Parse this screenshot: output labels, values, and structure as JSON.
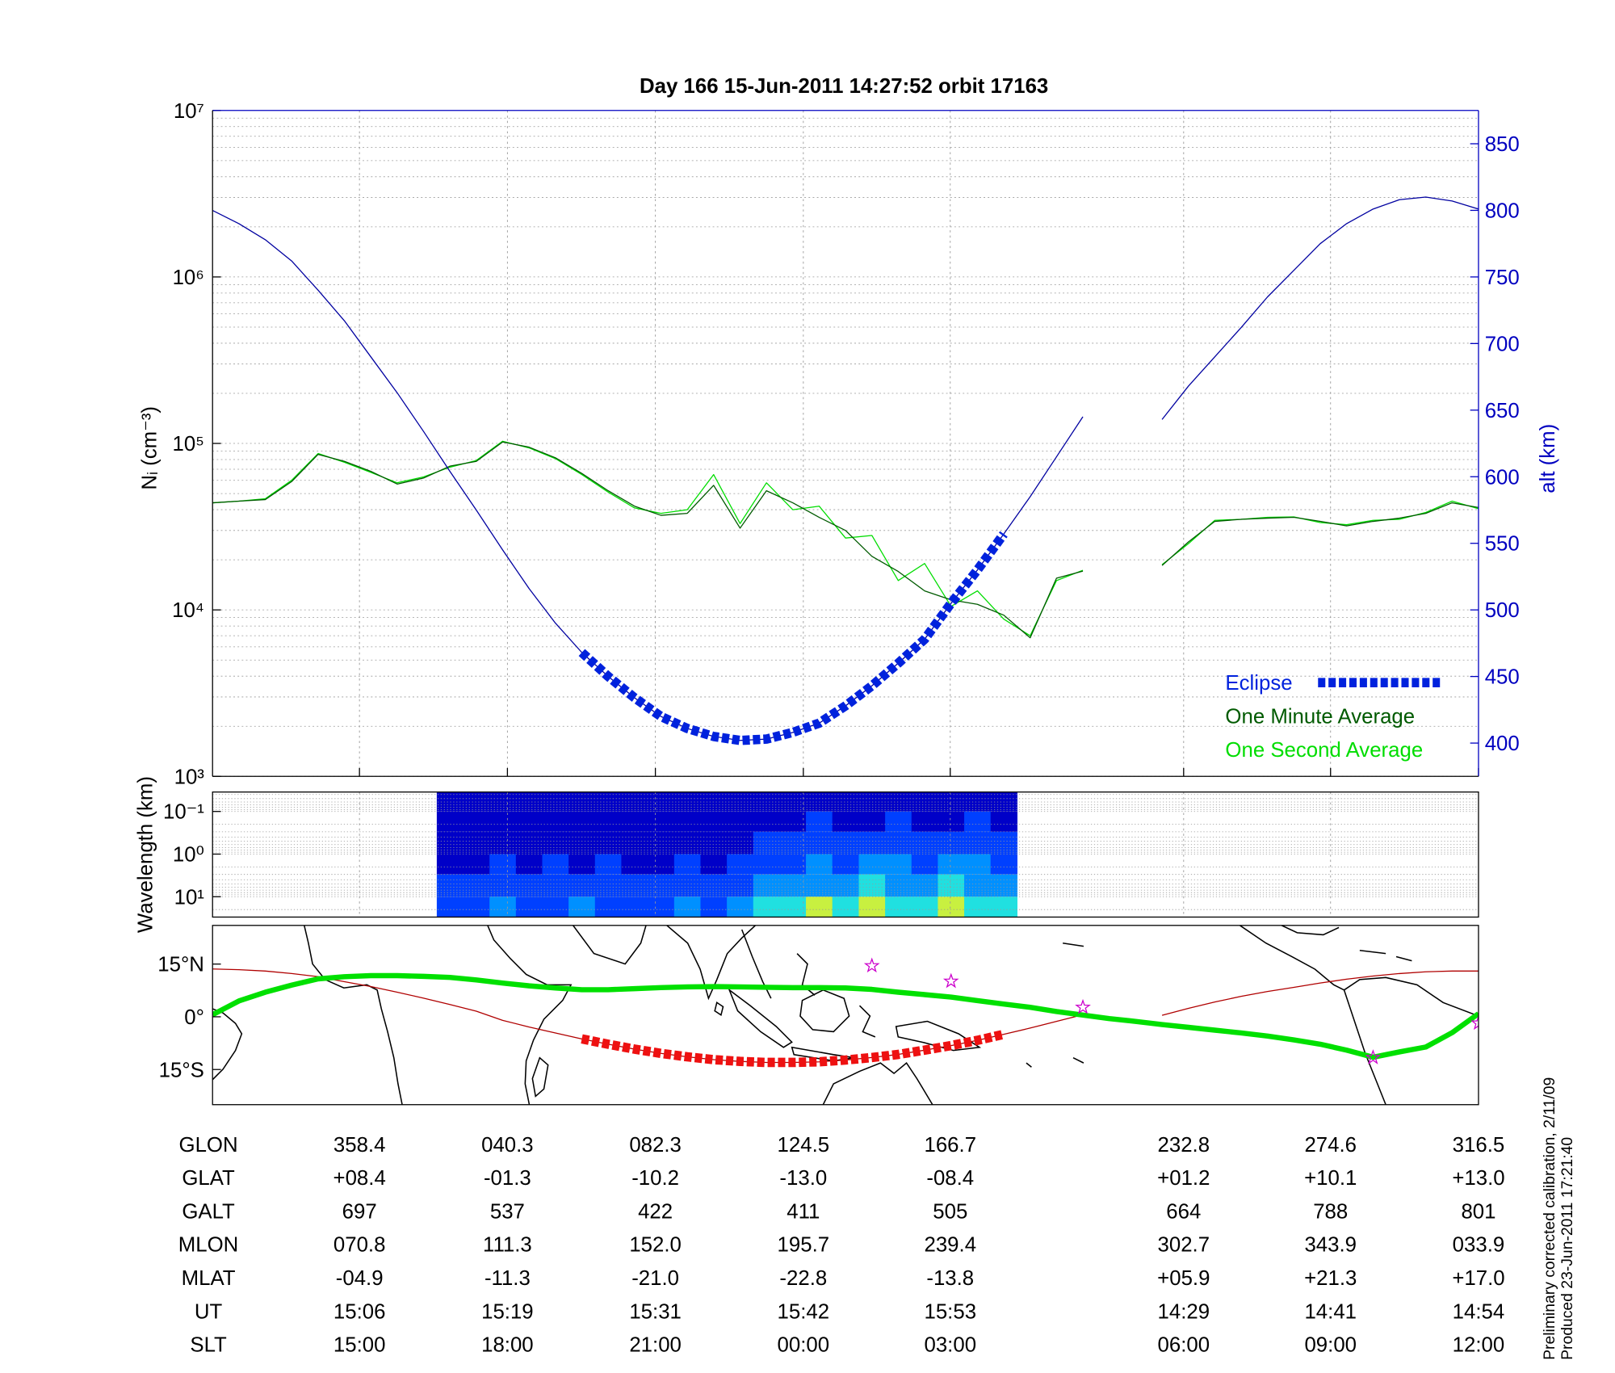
{
  "title": "Day 166  15-Jun-2011 14:27:52   orbit 17163",
  "chart_data": [
    {
      "type": "line",
      "ylabel": "Nᵢ (cm⁻³)",
      "y2label": "alt (km)",
      "yscale": "log",
      "ylim": [
        1000,
        10000000
      ],
      "yticks": [
        {
          "value": 1000,
          "label": "10³"
        },
        {
          "value": 10000,
          "label": "10⁴"
        },
        {
          "value": 100000,
          "label": "10⁵"
        },
        {
          "value": 1000000,
          "label": "10⁶"
        },
        {
          "value": 10000000,
          "label": "10⁷"
        }
      ],
      "y2lim": [
        375,
        875
      ],
      "y2ticks": [
        400,
        450,
        500,
        550,
        600,
        650,
        700,
        750,
        800,
        850
      ],
      "grid": true,
      "legend": "lower right",
      "series": [
        {
          "name": "One Second Average",
          "color": "#00dd00",
          "style": "line",
          "values": [
            44000,
            45000,
            46500,
            60000,
            87000,
            77000,
            67000,
            58000,
            63000,
            72000,
            79000,
            103000,
            94000,
            81000,
            65000,
            51000,
            41000,
            38000,
            40000,
            65000,
            33000,
            58000,
            40000,
            42000,
            27000,
            28000,
            15000,
            19000,
            10500,
            13000,
            8800,
            7000,
            15000,
            17300,
            null,
            null,
            18700,
            25000,
            34500,
            35000,
            36000,
            36200,
            33500,
            32500,
            34500,
            35000,
            38500,
            45000,
            40500
          ]
        },
        {
          "name": "One Minute Average",
          "color": "#005a00",
          "style": "line",
          "values": [
            44000,
            45000,
            46000,
            59000,
            86000,
            78000,
            68000,
            57000,
            62000,
            73000,
            78000,
            102000,
            95000,
            82000,
            66000,
            52000,
            42000,
            37000,
            38000,
            56000,
            31000,
            52000,
            44000,
            36000,
            30000,
            21000,
            17000,
            13000,
            11500,
            10800,
            9300,
            6800,
            15500,
            17100,
            null,
            null,
            18500,
            25600,
            34000,
            35000,
            35600,
            36000,
            34000,
            32000,
            34000,
            35600,
            38000,
            44000,
            41200
          ]
        },
        {
          "color": "#0000a0",
          "axis": "y2",
          "style": "line",
          "values": [
            800,
            790,
            778,
            762,
            740,
            717,
            690,
            663,
            634,
            604,
            575,
            545,
            516,
            490,
            468,
            450,
            434,
            420,
            411,
            405,
            402,
            403,
            408,
            415,
            428,
            443,
            460,
            478,
            505,
            530,
            557,
            585,
            615,
            645,
            null,
            null,
            643,
            668,
            690,
            712,
            735,
            755,
            775,
            790,
            801,
            808,
            810,
            807,
            801
          ]
        },
        {
          "name": "Eclipse",
          "color": "#0022dd",
          "axis": "y2",
          "style": "dashes",
          "values": [
            null,
            null,
            null,
            null,
            null,
            null,
            null,
            null,
            null,
            null,
            null,
            null,
            null,
            null,
            468,
            450,
            434,
            420,
            411,
            405,
            402,
            403,
            408,
            415,
            428,
            443,
            460,
            478,
            505,
            530,
            557,
            null,
            null,
            null,
            null,
            null,
            null,
            null,
            null,
            null,
            null,
            null,
            null,
            null,
            null,
            null,
            null,
            null,
            null
          ]
        }
      ]
    },
    {
      "type": "heatmap",
      "ylabel": "Wavelength (km)",
      "yscale": "log",
      "inverted": true,
      "ylim": [
        0.035,
        30
      ],
      "yticks": [
        {
          "value": 0.1,
          "label": "10⁻¹"
        },
        {
          "value": 1,
          "label": "10⁰"
        },
        {
          "value": 10,
          "label": "10¹"
        }
      ],
      "ybins": [
        0.035,
        0.1,
        0.3,
        1,
        3,
        10,
        30
      ],
      "zlim": [
        0,
        10
      ],
      "colorscale": [
        "#00007a",
        "#0000c8",
        "#0040ff",
        "#0090ff",
        "#20e0e0",
        "#c8f040"
      ],
      "z": [
        [
          null,
          null,
          null,
          null,
          null,
          null,
          null,
          null,
          null,
          1,
          1,
          1,
          1,
          1,
          1,
          1,
          1,
          1,
          1,
          1,
          1,
          1,
          2,
          2,
          1,
          2,
          2,
          1,
          2,
          2,
          1,
          null,
          null,
          null,
          null,
          null,
          null,
          null,
          null,
          null,
          null,
          null,
          null,
          null,
          null,
          null,
          null,
          null,
          null
        ],
        [
          null,
          null,
          null,
          null,
          null,
          null,
          null,
          null,
          null,
          1,
          1,
          2,
          1,
          1,
          1,
          2,
          1,
          1,
          2,
          1,
          1,
          2,
          2,
          3,
          2,
          2,
          3,
          2,
          2,
          3,
          2,
          null,
          null,
          null,
          null,
          null,
          null,
          null,
          null,
          null,
          null,
          null,
          null,
          null,
          null,
          null,
          null,
          null,
          null
        ],
        [
          null,
          null,
          null,
          null,
          null,
          null,
          null,
          null,
          null,
          2,
          2,
          2,
          2,
          2,
          2,
          2,
          2,
          2,
          2,
          2,
          2,
          3,
          3,
          4,
          3,
          3,
          4,
          3,
          3,
          4,
          3,
          null,
          null,
          null,
          null,
          null,
          null,
          null,
          null,
          null,
          null,
          null,
          null,
          null,
          null,
          null,
          null,
          null,
          null
        ],
        [
          null,
          null,
          null,
          null,
          null,
          null,
          null,
          null,
          null,
          2,
          2,
          3,
          2,
          3,
          2,
          3,
          2,
          2,
          3,
          2,
          3,
          4,
          4,
          5,
          4,
          5,
          5,
          4,
          5,
          5,
          4,
          null,
          null,
          null,
          null,
          null,
          null,
          null,
          null,
          null,
          null,
          null,
          null,
          null,
          null,
          null,
          null,
          null,
          null
        ],
        [
          null,
          null,
          null,
          null,
          null,
          null,
          null,
          null,
          null,
          3,
          3,
          3,
          3,
          3,
          3,
          3,
          3,
          3,
          3,
          3,
          3,
          5,
          6,
          6,
          6,
          7,
          6,
          6,
          7,
          6,
          5,
          null,
          null,
          null,
          null,
          null,
          null,
          null,
          null,
          null,
          null,
          null,
          null,
          null,
          null,
          null,
          null,
          null,
          null
        ],
        [
          null,
          null,
          null,
          null,
          null,
          null,
          null,
          null,
          null,
          4,
          4,
          5,
          4,
          4,
          5,
          4,
          4,
          4,
          5,
          4,
          5,
          7,
          8,
          9,
          8,
          9,
          8,
          8,
          9,
          8,
          7,
          null,
          null,
          null,
          null,
          null,
          null,
          null,
          null,
          null,
          null,
          null,
          null,
          null,
          null,
          null,
          null,
          null,
          null
        ]
      ]
    },
    {
      "type": "map",
      "ylim": [
        -25,
        26
      ],
      "yticks": [
        {
          "value": 15,
          "label": "15°N"
        },
        {
          "value": 0,
          "label": "0°"
        },
        {
          "value": -15,
          "label": "15°S"
        }
      ],
      "series": [
        {
          "color": "#b00000",
          "style": "line",
          "values": [
            13.6,
            13.4,
            13.0,
            12.3,
            11.4,
            10.0,
            8.6,
            7.0,
            5.3,
            3.5,
            1.6,
            -1.0,
            -2.9,
            -4.6,
            -6.3,
            -7.8,
            -9.2,
            -10.4,
            -11.4,
            -12.2,
            -12.7,
            -13.0,
            -13.0,
            -12.8,
            -12.3,
            -11.6,
            -10.7,
            -9.5,
            -8.2,
            -6.7,
            -5.0,
            -3.2,
            -1.3,
            0.6,
            null,
            null,
            0.4,
            2.4,
            4.2,
            5.8,
            7.2,
            8.4,
            9.6,
            10.7,
            11.6,
            12.3,
            12.8,
            13.0,
            13.0
          ]
        },
        {
          "color": "#00e000",
          "style": "thick",
          "values": [
            0.6,
            4.5,
            7.0,
            9.0,
            10.8,
            11.4,
            11.7,
            11.7,
            11.5,
            11.2,
            10.5,
            9.6,
            8.8,
            8.2,
            7.7,
            7.7,
            8.0,
            8.3,
            8.5,
            8.6,
            8.5,
            8.4,
            8.3,
            8.3,
            8.2,
            7.8,
            7.0,
            6.3,
            5.6,
            4.6,
            3.6,
            2.7,
            1.5,
            0.5,
            -0.5,
            -1.3,
            -2.2,
            -3.0,
            -3.8,
            -4.6,
            -5.5,
            -6.6,
            -7.8,
            -9.5,
            -11.5,
            -10.0,
            -8.6,
            -4.5,
            0.9
          ]
        },
        {
          "color": "#ee1111",
          "style": "dashes",
          "values": [
            null,
            null,
            null,
            null,
            null,
            null,
            null,
            null,
            null,
            null,
            null,
            null,
            null,
            null,
            -6.3,
            -7.8,
            -9.2,
            -10.4,
            -11.4,
            -12.2,
            -12.7,
            -13.0,
            -13.0,
            -12.8,
            -12.3,
            -11.6,
            -10.7,
            -9.5,
            -8.2,
            -6.7,
            -5.0,
            null,
            null,
            null,
            null,
            null,
            null,
            null,
            null,
            null,
            null,
            null,
            null,
            null,
            null,
            null,
            null,
            null,
            null
          ]
        },
        {
          "color": "#cc00cc",
          "style": "star",
          "values": [
            null,
            null,
            null,
            null,
            null,
            null,
            null,
            null,
            null,
            null,
            null,
            null,
            null,
            null,
            null,
            null,
            null,
            null,
            null,
            null,
            null,
            null,
            null,
            null,
            null,
            14.5,
            null,
            null,
            10.1,
            null,
            null,
            null,
            null,
            2.7,
            null,
            null,
            null,
            null,
            null,
            null,
            null,
            null,
            null,
            null,
            -11.6,
            null,
            null,
            null,
            -1.8
          ]
        }
      ]
    }
  ],
  "table": {
    "rows": [
      {
        "label": "GLON",
        "cells": [
          "358.4",
          "040.3",
          "082.3",
          "124.5",
          "166.7",
          "232.8",
          "274.6",
          "316.5"
        ]
      },
      {
        "label": "GLAT",
        "cells": [
          "+08.4",
          "-01.3",
          "-10.2",
          "-13.0",
          "-08.4",
          "+01.2",
          "+10.1",
          "+13.0"
        ]
      },
      {
        "label": "GALT",
        "cells": [
          "697",
          "537",
          "422",
          "411",
          "505",
          "664",
          "788",
          "801"
        ]
      },
      {
        "label": "MLON",
        "cells": [
          "070.8",
          "111.3",
          "152.0",
          "195.7",
          "239.4",
          "302.7",
          "343.9",
          "033.9"
        ]
      },
      {
        "label": "MLAT",
        "cells": [
          "-04.9",
          "-11.3",
          "-21.0",
          "-22.8",
          "-13.8",
          "+05.9",
          "+21.3",
          "+17.0"
        ]
      },
      {
        "label": "UT",
        "cells": [
          "15:06",
          "15:19",
          "15:31",
          "15:42",
          "15:53",
          "14:29",
          "14:41",
          "14:54"
        ]
      },
      {
        "label": "SLT",
        "cells": [
          "15:00",
          "18:00",
          "21:00",
          "00:00",
          "03:00",
          "06:00",
          "09:00",
          "12:00"
        ]
      }
    ]
  },
  "notes": [
    "Preliminary corrected calibration, 2/11/09",
    "Produced 23-Jun-2011 17:21:40"
  ]
}
